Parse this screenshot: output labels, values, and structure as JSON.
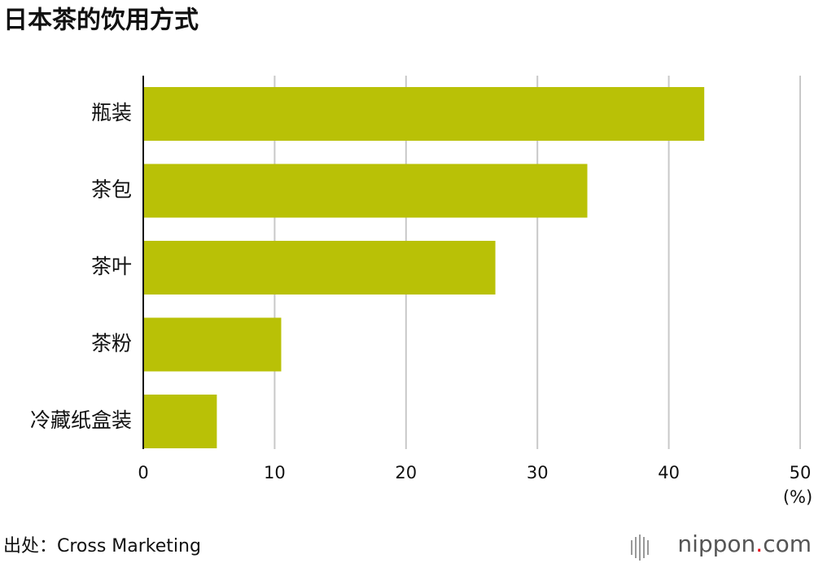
{
  "chart_data": {
    "type": "hbar",
    "title": "日本茶的饮用方式",
    "categories": [
      "瓶装",
      "茶包",
      "茶叶",
      "茶粉",
      "冷藏纸盒装"
    ],
    "values": [
      42.7,
      33.8,
      26.8,
      10.5,
      5.6
    ],
    "color": "#b9c106",
    "xlim": [
      0,
      50
    ],
    "xticks": [
      0,
      10,
      20,
      30,
      40,
      50
    ],
    "grid": true,
    "unit_label": "(%)",
    "source": "出处：Cross Marketing",
    "brand": "nippon",
    "brand_dot": ".",
    "brand_suffix": "com"
  }
}
